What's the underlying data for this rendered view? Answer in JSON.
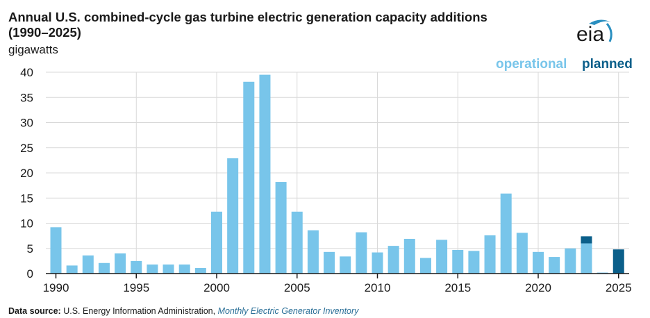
{
  "header": {
    "title_line1": "Annual U.S. combined-cycle gas turbine electric generation capacity additions",
    "title_line2": "(1990–2025)",
    "unit": "gigawatts",
    "logo_text": "eia"
  },
  "legend": {
    "operational": "operational",
    "planned": "planned"
  },
  "footer": {
    "source_label": "Data source:",
    "source_org": "U.S. Energy Information Administration,",
    "source_pub": "Monthly Electric Generator Inventory"
  },
  "colors": {
    "operational": "#78c5ea",
    "planned": "#0b5f8a",
    "grid": "#d9d9d9",
    "axis": "#1a1a1a"
  },
  "chart_data": {
    "type": "bar",
    "stacked": true,
    "title": "Annual U.S. combined-cycle gas turbine electric generation capacity additions (1990–2025)",
    "xlabel": "",
    "ylabel": "gigawatts",
    "ylim": [
      0,
      40
    ],
    "yticks": [
      0,
      5,
      10,
      15,
      20,
      25,
      30,
      35,
      40
    ],
    "xticks": [
      1990,
      1995,
      2000,
      2005,
      2010,
      2015,
      2020,
      2025
    ],
    "grid": true,
    "legend_position": "top-right",
    "categories": [
      1990,
      1991,
      1992,
      1993,
      1994,
      1995,
      1996,
      1997,
      1998,
      1999,
      2000,
      2001,
      2002,
      2003,
      2004,
      2005,
      2006,
      2007,
      2008,
      2009,
      2010,
      2011,
      2012,
      2013,
      2014,
      2015,
      2016,
      2017,
      2018,
      2019,
      2020,
      2021,
      2022,
      2023,
      2024,
      2025
    ],
    "series": [
      {
        "name": "operational",
        "values": [
          9.2,
          1.6,
          3.6,
          2.1,
          4.0,
          2.5,
          1.8,
          1.8,
          1.8,
          1.1,
          12.3,
          22.9,
          38.1,
          39.5,
          18.2,
          12.3,
          8.6,
          4.3,
          3.4,
          8.2,
          4.2,
          5.5,
          6.9,
          3.1,
          6.7,
          4.7,
          4.5,
          7.6,
          15.9,
          8.1,
          4.3,
          3.3,
          5.0,
          6.0,
          0.2,
          0
        ]
      },
      {
        "name": "planned",
        "values": [
          0,
          0,
          0,
          0,
          0,
          0,
          0,
          0,
          0,
          0,
          0,
          0,
          0,
          0,
          0,
          0,
          0,
          0,
          0,
          0,
          0,
          0,
          0,
          0,
          0,
          0,
          0,
          0,
          0,
          0,
          0,
          0,
          0,
          1.4,
          0,
          4.8
        ]
      }
    ]
  }
}
